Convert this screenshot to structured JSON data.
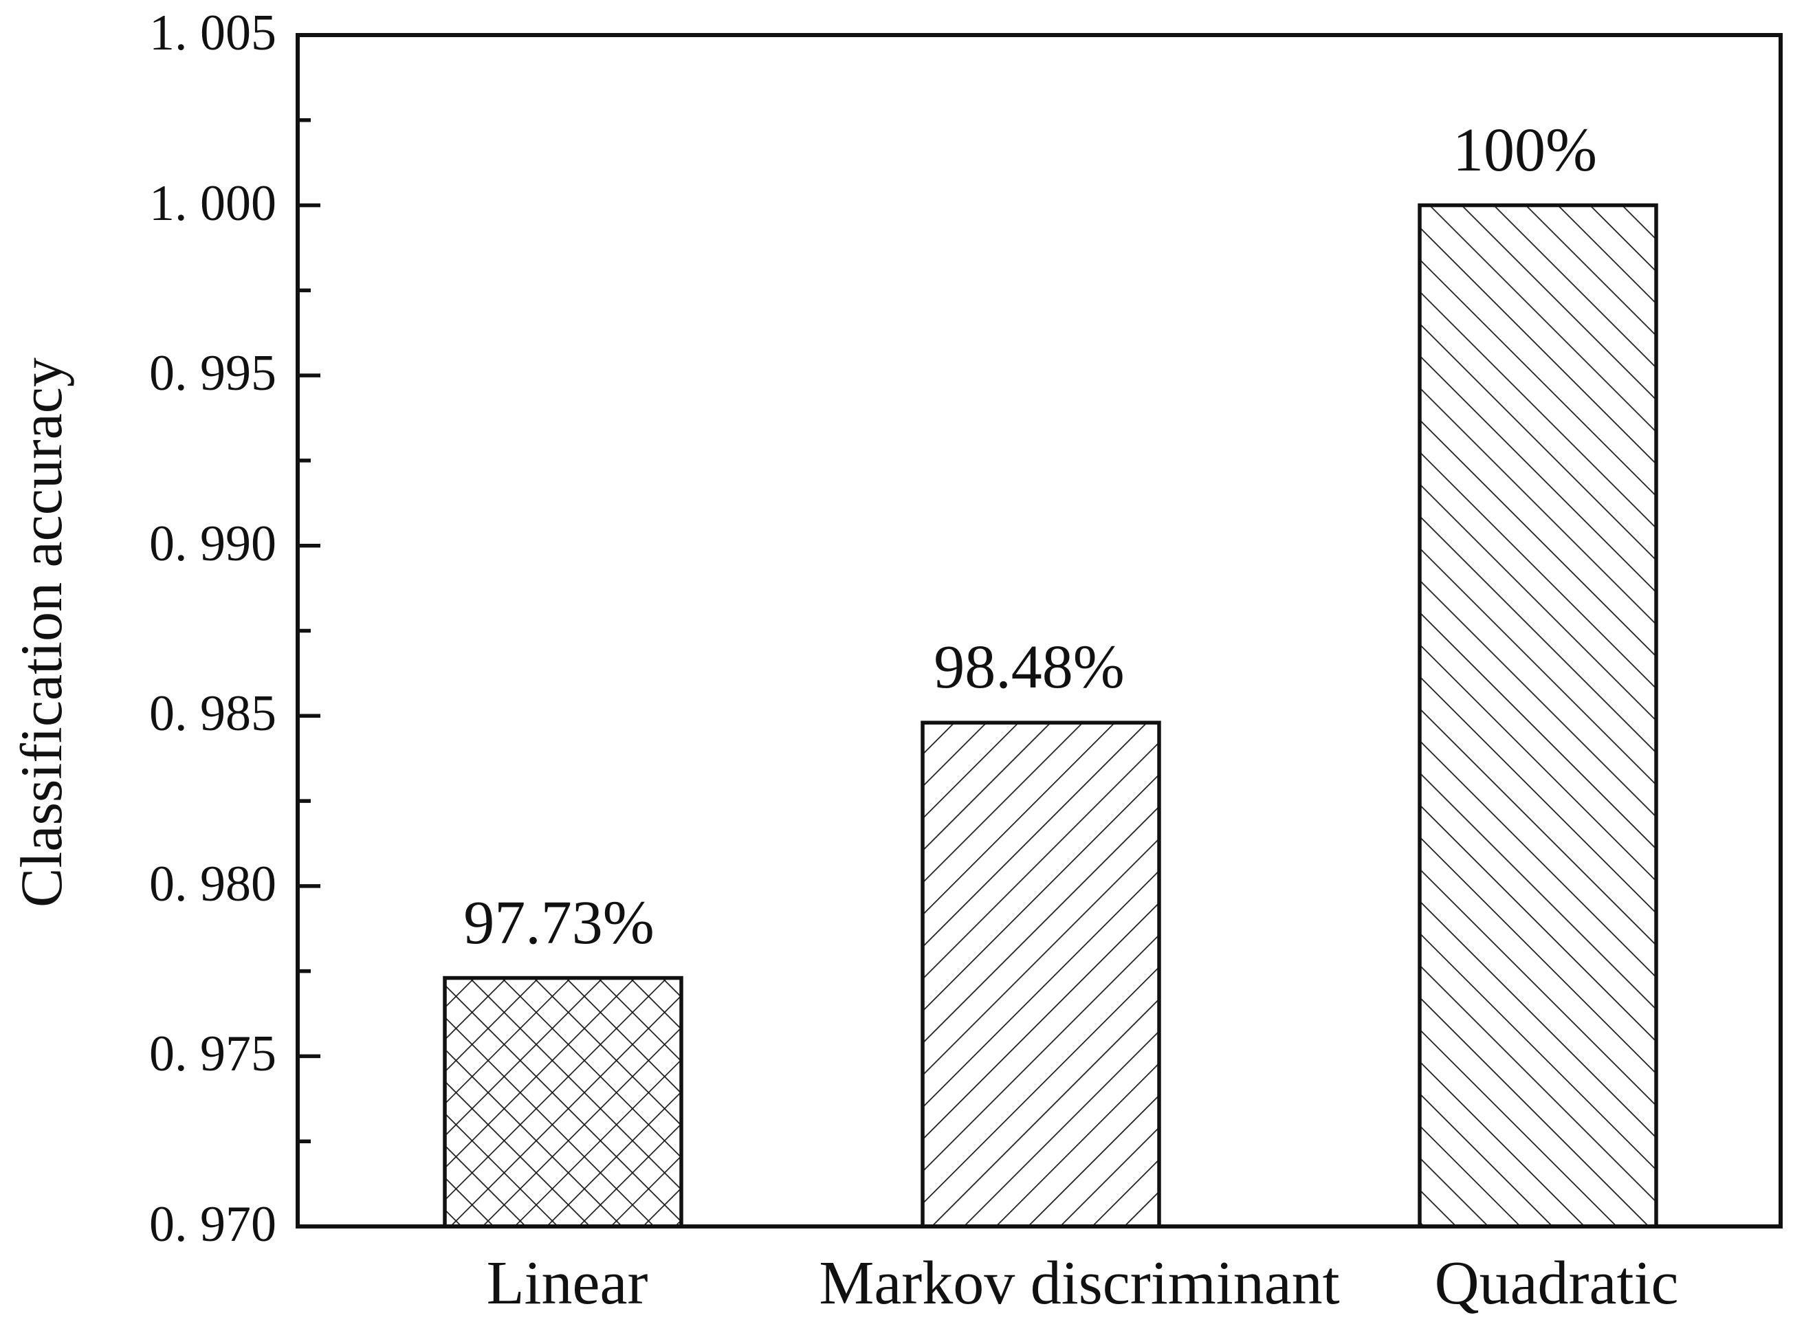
{
  "chart_data": {
    "type": "bar",
    "title": "",
    "categories": [
      "Linear",
      "Markov discriminant",
      "Quadratic"
    ],
    "values": [
      0.9773,
      0.9848,
      1.0
    ],
    "bar_labels": [
      "97.73%",
      "98.48%",
      "100%"
    ],
    "hatch_styles": [
      "crosshatch",
      "forward-diagonal",
      "backward-diagonal"
    ],
    "xlabel": "",
    "ylabel": "Classification accuracy",
    "ylim": [
      0.97,
      1.005
    ],
    "ytick_interval": 0.005,
    "ytick_labels": [
      "1. 005",
      "1. 000",
      "0. 995",
      "0. 990",
      "0. 985",
      "0. 980",
      "0. 975",
      "0. 970"
    ],
    "minor_ticks": true,
    "grid": false,
    "legend": false,
    "colors": {
      "ink": "#111111",
      "hatch": "#1c1c1c",
      "background": "#ffffff"
    }
  }
}
